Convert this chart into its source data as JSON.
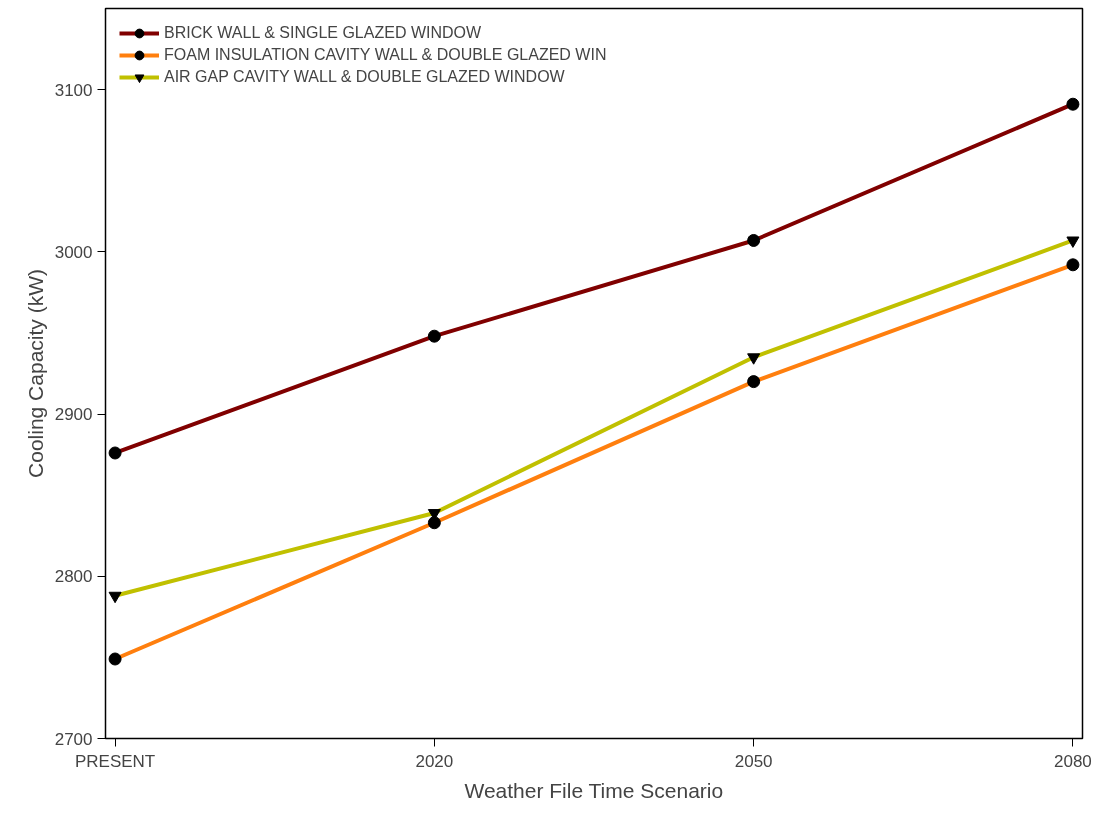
{
  "chart_data": {
    "type": "line",
    "xlabel": "Weather File Time Scenario",
    "ylabel": "Cooling Capacity (kW)",
    "categories": [
      "PRESENT",
      "2020",
      "2050",
      "2080"
    ],
    "ylim": [
      2700,
      3150
    ],
    "yticks": [
      2700,
      2800,
      2900,
      3000,
      3100
    ],
    "grid": false,
    "legend": "top left",
    "line_style": "solid",
    "series": [
      {
        "name": "BRICK WALL & SINGLE GLAZED WINDOW",
        "color": "#800000",
        "marker": "circle",
        "values": [
          2876,
          2948,
          3007,
          3091
        ]
      },
      {
        "name": "FOAM INSULATION CAVITY WALL & DOUBLE GLAZED WIN",
        "color": "#ff7f0e",
        "marker": "circle",
        "values": [
          2749,
          2833,
          2920,
          2992
        ]
      },
      {
        "name": "AIR GAP CAVITY WALL & DOUBLE GLAZED WINDOW",
        "color": "#c0c000",
        "marker": "triangle",
        "values": [
          2788,
          2839,
          2935,
          3007
        ]
      }
    ]
  }
}
